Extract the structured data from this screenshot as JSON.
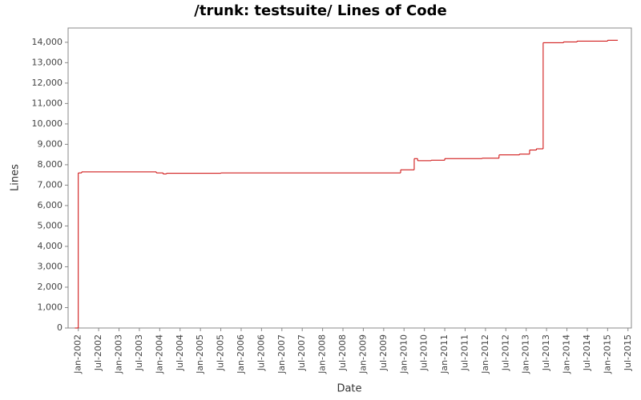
{
  "chart_data": {
    "type": "line",
    "step": true,
    "title": "/trunk: testsuite/ Lines of Code",
    "x_label": "Date",
    "y_label": "Lines",
    "series": [
      {
        "name": "Lines",
        "color": "#cc0000",
        "x": [
          "2001-12",
          "2002-01",
          "2002-02",
          "2003-12",
          "2004-02",
          "2004-03",
          "2005-07",
          "2009-12",
          "2010-04",
          "2010-05",
          "2010-09",
          "2011-01",
          "2011-12",
          "2012-05",
          "2012-11",
          "2013-02",
          "2013-04",
          "2013-06",
          "2013-12",
          "2014-04",
          "2015-01",
          "2015-04"
        ],
        "values": [
          0,
          7600,
          7650,
          7600,
          7550,
          7580,
          7600,
          7750,
          8300,
          8200,
          8220,
          8300,
          8320,
          8480,
          8520,
          8720,
          8780,
          13980,
          14020,
          14060,
          14100,
          14100
        ]
      }
    ],
    "xlim": [
      "2001-10",
      "2015-08"
    ],
    "xticks": [
      {
        "value": "2002-01",
        "label": "Jan-2002"
      },
      {
        "value": "2002-07",
        "label": "Jul-2002"
      },
      {
        "value": "2003-01",
        "label": "Jan-2003"
      },
      {
        "value": "2003-07",
        "label": "Jul-2003"
      },
      {
        "value": "2004-01",
        "label": "Jan-2004"
      },
      {
        "value": "2004-07",
        "label": "Jul-2004"
      },
      {
        "value": "2005-01",
        "label": "Jan-2005"
      },
      {
        "value": "2005-07",
        "label": "Jul-2005"
      },
      {
        "value": "2006-01",
        "label": "Jan-2006"
      },
      {
        "value": "2006-07",
        "label": "Jul-2006"
      },
      {
        "value": "2007-01",
        "label": "Jan-2007"
      },
      {
        "value": "2007-07",
        "label": "Jul-2007"
      },
      {
        "value": "2008-01",
        "label": "Jan-2008"
      },
      {
        "value": "2008-07",
        "label": "Jul-2008"
      },
      {
        "value": "2009-01",
        "label": "Jan-2009"
      },
      {
        "value": "2009-07",
        "label": "Jul-2009"
      },
      {
        "value": "2010-01",
        "label": "Jan-2010"
      },
      {
        "value": "2010-07",
        "label": "Jul-2010"
      },
      {
        "value": "2011-01",
        "label": "Jan-2011"
      },
      {
        "value": "2011-07",
        "label": "Jul-2011"
      },
      {
        "value": "2012-01",
        "label": "Jan-2012"
      },
      {
        "value": "2012-07",
        "label": "Jul-2012"
      },
      {
        "value": "2013-01",
        "label": "Jan-2013"
      },
      {
        "value": "2013-07",
        "label": "Jul-2013"
      },
      {
        "value": "2014-01",
        "label": "Jan-2014"
      },
      {
        "value": "2014-07",
        "label": "Jul-2014"
      },
      {
        "value": "2015-01",
        "label": "Jan-2015"
      },
      {
        "value": "2015-07",
        "label": "Jul-2015"
      }
    ],
    "ylim": [
      0,
      14700
    ],
    "yticks": [
      0,
      {
        "value": 1000,
        "label": "1,000"
      },
      {
        "value": 2000,
        "label": "2,000"
      },
      {
        "value": 3000,
        "label": "3,000"
      },
      {
        "value": 4000,
        "label": "4,000"
      },
      {
        "value": 5000,
        "label": "5,000"
      },
      {
        "value": 6000,
        "label": "6,000"
      },
      {
        "value": 7000,
        "label": "7,000"
      },
      {
        "value": 8000,
        "label": "8,000"
      },
      {
        "value": 9000,
        "label": "9,000"
      },
      {
        "value": 10000,
        "label": "10,000"
      },
      {
        "value": 11000,
        "label": "11,000"
      },
      {
        "value": 12000,
        "label": "12,000"
      },
      {
        "value": 13000,
        "label": "13,000"
      },
      {
        "value": 14000,
        "label": "14,000"
      }
    ],
    "grid": false
  }
}
